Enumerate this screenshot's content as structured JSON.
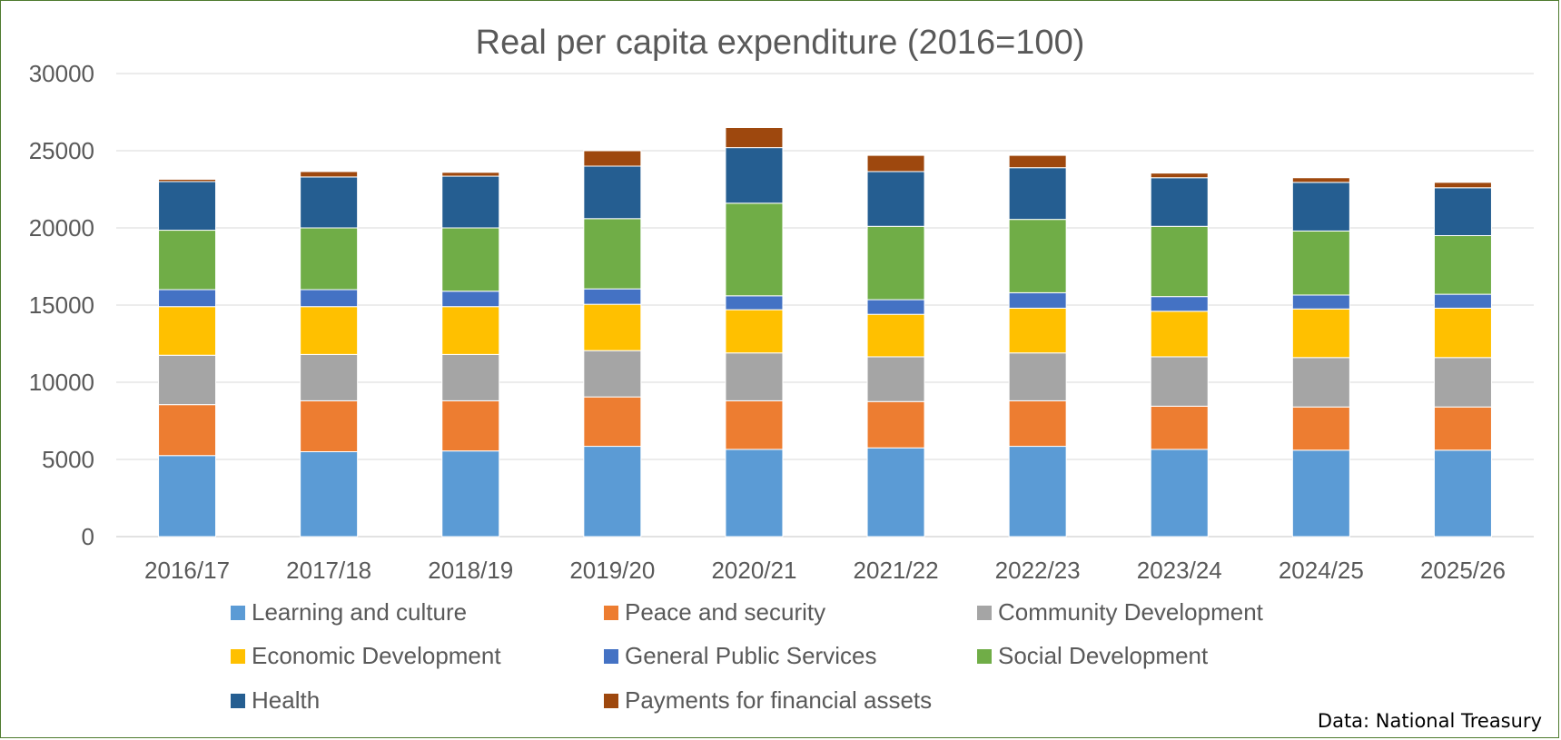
{
  "chart_data": {
    "type": "bar",
    "stacked": true,
    "title": "Real per capita expenditure (2016=100)",
    "xlabel": "",
    "ylabel": "",
    "ylim": [
      0,
      30000
    ],
    "yticks": [
      0,
      5000,
      10000,
      15000,
      20000,
      25000,
      30000
    ],
    "grid": true,
    "legend_position": "bottom",
    "categories": [
      "2016/17",
      "2017/18",
      "2018/19",
      "2019/20",
      "2020/21",
      "2021/22",
      "2022/23",
      "2023/24",
      "2024/25",
      "2025/26"
    ],
    "series": [
      {
        "name": "Learning and culture",
        "color": "#5b9bd5",
        "values": [
          5250,
          5500,
          5550,
          5850,
          5650,
          5750,
          5850,
          5650,
          5600,
          5600
        ]
      },
      {
        "name": "Peace and security",
        "color": "#ed7d31",
        "values": [
          3300,
          3300,
          3250,
          3200,
          3150,
          3000,
          2950,
          2800,
          2800,
          2800
        ]
      },
      {
        "name": "Community Development",
        "color": "#a5a5a5",
        "values": [
          3200,
          3000,
          3000,
          3000,
          3100,
          2900,
          3100,
          3200,
          3200,
          3200
        ]
      },
      {
        "name": "Economic Development",
        "color": "#ffc000",
        "values": [
          3150,
          3100,
          3100,
          3000,
          2800,
          2750,
          2900,
          2950,
          3150,
          3200
        ]
      },
      {
        "name": "General Public Services",
        "color": "#4472c4",
        "values": [
          1100,
          1100,
          1000,
          1000,
          900,
          950,
          1000,
          950,
          900,
          900
        ]
      },
      {
        "name": "Social Development",
        "color": "#70ad47",
        "values": [
          3850,
          4000,
          4100,
          4550,
          6000,
          4750,
          4750,
          4550,
          4150,
          3800
        ]
      },
      {
        "name": "Health",
        "color": "#255e91",
        "values": [
          3150,
          3300,
          3350,
          3400,
          3600,
          3550,
          3350,
          3150,
          3150,
          3100
        ]
      },
      {
        "name": "Payments for financial assets",
        "color": "#9e480e",
        "values": [
          150,
          350,
          250,
          1000,
          1300,
          1050,
          800,
          300,
          300,
          350
        ]
      }
    ]
  },
  "source_note": "Data: National Treasury"
}
